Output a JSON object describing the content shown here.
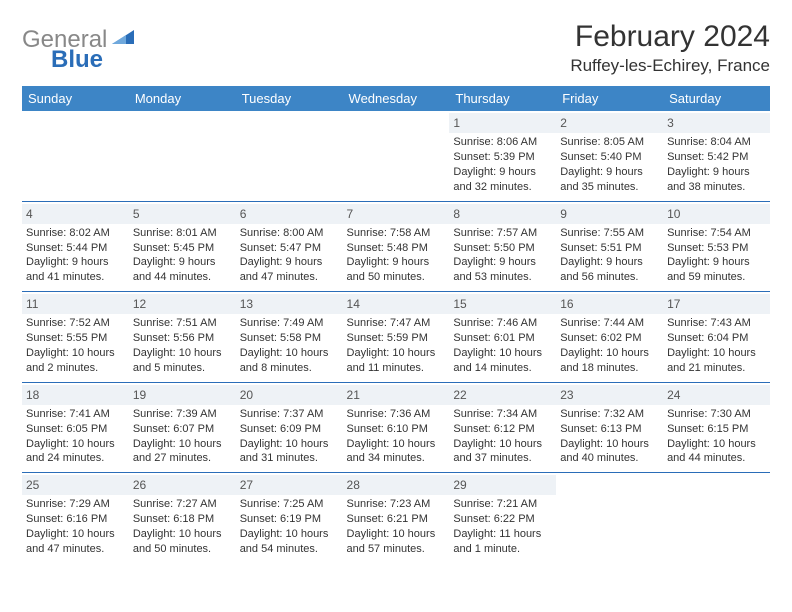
{
  "brand": {
    "gray": "General",
    "blue": "Blue"
  },
  "title": "February 2024",
  "location": "Ruffey-les-Echirey, France",
  "colors": {
    "header_bg": "#3d85c6",
    "daynum_bg": "#eef2f6",
    "rule": "#2a6db8",
    "text": "#333333",
    "logo_blue": "#2a6db8",
    "logo_gray": "#888888"
  },
  "typography": {
    "title_fontsize": 30,
    "location_fontsize": 17,
    "weekday_fontsize": 13,
    "cell_fontsize": 11,
    "daynum_fontsize": 12
  },
  "weekdays": [
    "Sunday",
    "Monday",
    "Tuesday",
    "Wednesday",
    "Thursday",
    "Friday",
    "Saturday"
  ],
  "weeks": [
    [
      {
        "day": "",
        "sunrise": "",
        "sunset": "",
        "daylight": ""
      },
      {
        "day": "",
        "sunrise": "",
        "sunset": "",
        "daylight": ""
      },
      {
        "day": "",
        "sunrise": "",
        "sunset": "",
        "daylight": ""
      },
      {
        "day": "",
        "sunrise": "",
        "sunset": "",
        "daylight": ""
      },
      {
        "day": "1",
        "sunrise": "Sunrise: 8:06 AM",
        "sunset": "Sunset: 5:39 PM",
        "daylight": "Daylight: 9 hours and 32 minutes."
      },
      {
        "day": "2",
        "sunrise": "Sunrise: 8:05 AM",
        "sunset": "Sunset: 5:40 PM",
        "daylight": "Daylight: 9 hours and 35 minutes."
      },
      {
        "day": "3",
        "sunrise": "Sunrise: 8:04 AM",
        "sunset": "Sunset: 5:42 PM",
        "daylight": "Daylight: 9 hours and 38 minutes."
      }
    ],
    [
      {
        "day": "4",
        "sunrise": "Sunrise: 8:02 AM",
        "sunset": "Sunset: 5:44 PM",
        "daylight": "Daylight: 9 hours and 41 minutes."
      },
      {
        "day": "5",
        "sunrise": "Sunrise: 8:01 AM",
        "sunset": "Sunset: 5:45 PM",
        "daylight": "Daylight: 9 hours and 44 minutes."
      },
      {
        "day": "6",
        "sunrise": "Sunrise: 8:00 AM",
        "sunset": "Sunset: 5:47 PM",
        "daylight": "Daylight: 9 hours and 47 minutes."
      },
      {
        "day": "7",
        "sunrise": "Sunrise: 7:58 AM",
        "sunset": "Sunset: 5:48 PM",
        "daylight": "Daylight: 9 hours and 50 minutes."
      },
      {
        "day": "8",
        "sunrise": "Sunrise: 7:57 AM",
        "sunset": "Sunset: 5:50 PM",
        "daylight": "Daylight: 9 hours and 53 minutes."
      },
      {
        "day": "9",
        "sunrise": "Sunrise: 7:55 AM",
        "sunset": "Sunset: 5:51 PM",
        "daylight": "Daylight: 9 hours and 56 minutes."
      },
      {
        "day": "10",
        "sunrise": "Sunrise: 7:54 AM",
        "sunset": "Sunset: 5:53 PM",
        "daylight": "Daylight: 9 hours and 59 minutes."
      }
    ],
    [
      {
        "day": "11",
        "sunrise": "Sunrise: 7:52 AM",
        "sunset": "Sunset: 5:55 PM",
        "daylight": "Daylight: 10 hours and 2 minutes."
      },
      {
        "day": "12",
        "sunrise": "Sunrise: 7:51 AM",
        "sunset": "Sunset: 5:56 PM",
        "daylight": "Daylight: 10 hours and 5 minutes."
      },
      {
        "day": "13",
        "sunrise": "Sunrise: 7:49 AM",
        "sunset": "Sunset: 5:58 PM",
        "daylight": "Daylight: 10 hours and 8 minutes."
      },
      {
        "day": "14",
        "sunrise": "Sunrise: 7:47 AM",
        "sunset": "Sunset: 5:59 PM",
        "daylight": "Daylight: 10 hours and 11 minutes."
      },
      {
        "day": "15",
        "sunrise": "Sunrise: 7:46 AM",
        "sunset": "Sunset: 6:01 PM",
        "daylight": "Daylight: 10 hours and 14 minutes."
      },
      {
        "day": "16",
        "sunrise": "Sunrise: 7:44 AM",
        "sunset": "Sunset: 6:02 PM",
        "daylight": "Daylight: 10 hours and 18 minutes."
      },
      {
        "day": "17",
        "sunrise": "Sunrise: 7:43 AM",
        "sunset": "Sunset: 6:04 PM",
        "daylight": "Daylight: 10 hours and 21 minutes."
      }
    ],
    [
      {
        "day": "18",
        "sunrise": "Sunrise: 7:41 AM",
        "sunset": "Sunset: 6:05 PM",
        "daylight": "Daylight: 10 hours and 24 minutes."
      },
      {
        "day": "19",
        "sunrise": "Sunrise: 7:39 AM",
        "sunset": "Sunset: 6:07 PM",
        "daylight": "Daylight: 10 hours and 27 minutes."
      },
      {
        "day": "20",
        "sunrise": "Sunrise: 7:37 AM",
        "sunset": "Sunset: 6:09 PM",
        "daylight": "Daylight: 10 hours and 31 minutes."
      },
      {
        "day": "21",
        "sunrise": "Sunrise: 7:36 AM",
        "sunset": "Sunset: 6:10 PM",
        "daylight": "Daylight: 10 hours and 34 minutes."
      },
      {
        "day": "22",
        "sunrise": "Sunrise: 7:34 AM",
        "sunset": "Sunset: 6:12 PM",
        "daylight": "Daylight: 10 hours and 37 minutes."
      },
      {
        "day": "23",
        "sunrise": "Sunrise: 7:32 AM",
        "sunset": "Sunset: 6:13 PM",
        "daylight": "Daylight: 10 hours and 40 minutes."
      },
      {
        "day": "24",
        "sunrise": "Sunrise: 7:30 AM",
        "sunset": "Sunset: 6:15 PM",
        "daylight": "Daylight: 10 hours and 44 minutes."
      }
    ],
    [
      {
        "day": "25",
        "sunrise": "Sunrise: 7:29 AM",
        "sunset": "Sunset: 6:16 PM",
        "daylight": "Daylight: 10 hours and 47 minutes."
      },
      {
        "day": "26",
        "sunrise": "Sunrise: 7:27 AM",
        "sunset": "Sunset: 6:18 PM",
        "daylight": "Daylight: 10 hours and 50 minutes."
      },
      {
        "day": "27",
        "sunrise": "Sunrise: 7:25 AM",
        "sunset": "Sunset: 6:19 PM",
        "daylight": "Daylight: 10 hours and 54 minutes."
      },
      {
        "day": "28",
        "sunrise": "Sunrise: 7:23 AM",
        "sunset": "Sunset: 6:21 PM",
        "daylight": "Daylight: 10 hours and 57 minutes."
      },
      {
        "day": "29",
        "sunrise": "Sunrise: 7:21 AM",
        "sunset": "Sunset: 6:22 PM",
        "daylight": "Daylight: 11 hours and 1 minute."
      },
      {
        "day": "",
        "sunrise": "",
        "sunset": "",
        "daylight": ""
      },
      {
        "day": "",
        "sunrise": "",
        "sunset": "",
        "daylight": ""
      }
    ]
  ]
}
